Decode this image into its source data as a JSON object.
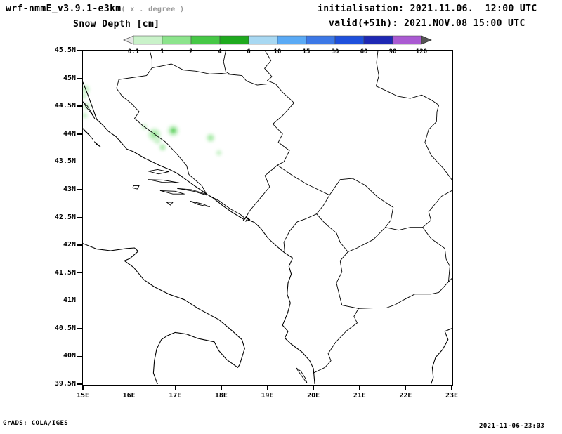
{
  "header": {
    "model_title": "wrf-nmmE_v3.9.1-e3km",
    "model_note": "( x . degree )",
    "product_title": "Snow Depth [cm]",
    "init_line": "initialisation: 2021.11.06.  12:00 UTC",
    "valid_line": "valid(+51h): 2021.NOV.08 15:00 UTC"
  },
  "footer": {
    "credit": "GrADS: COLA/IGES",
    "timestamp": "2021-11-06-23:03"
  },
  "chart_data": {
    "type": "map",
    "title": "Snow Depth [cm]",
    "variable": "snow depth",
    "units": "cm",
    "projection": "lat-lon",
    "region": "Adriatic / Balkans",
    "lon_range": [
      15,
      23
    ],
    "lat_range": [
      39.5,
      45.5
    ],
    "lon_ticks": [
      "15E",
      "16E",
      "17E",
      "18E",
      "19E",
      "20E",
      "21E",
      "22E",
      "23E"
    ],
    "lat_ticks": [
      "45.5N",
      "45N",
      "44.5N",
      "44N",
      "43.5N",
      "43N",
      "42.5N",
      "42N",
      "41.5N",
      "41N",
      "40.5N",
      "40N",
      "39.5N"
    ],
    "colorbar": {
      "levels": [
        0.1,
        1,
        2,
        4,
        6,
        10,
        15,
        30,
        60,
        90,
        120
      ],
      "labels": [
        "0.1",
        "1",
        "2",
        "4",
        "6",
        "10",
        "15",
        "30",
        "60",
        "90",
        "120"
      ],
      "segment_colors": [
        "#c9f2c9",
        "#8ce48c",
        "#46c846",
        "#1eaa1e",
        "#a8d8f2",
        "#5aaaf5",
        "#3c78e6",
        "#1e50dc",
        "#1e28b4",
        "#aa5ad2"
      ],
      "under_arrow_color": "#e6e6e6",
      "over_arrow_color": "#555555"
    },
    "snow_spots": [
      {
        "lon": 15.05,
        "lat": 44.8,
        "r": 6,
        "cm": 0.5
      },
      {
        "lon": 15.02,
        "lat": 44.68,
        "r": 4,
        "cm": 0.5
      },
      {
        "lon": 15.08,
        "lat": 44.5,
        "r": 5,
        "cm": 0.5
      },
      {
        "lon": 15.04,
        "lat": 44.33,
        "r": 4,
        "cm": 0.5
      },
      {
        "lon": 16.33,
        "lat": 44.13,
        "r": 4,
        "cm": 0.5
      },
      {
        "lon": 16.55,
        "lat": 43.99,
        "r": 9,
        "cm": 0.5
      },
      {
        "lon": 16.55,
        "lat": 43.99,
        "r": 4,
        "cm": 1.5
      },
      {
        "lon": 16.62,
        "lat": 43.88,
        "r": 5,
        "cm": 0.5
      },
      {
        "lon": 16.96,
        "lat": 44.06,
        "r": 8,
        "cm": 0.5
      },
      {
        "lon": 16.96,
        "lat": 44.06,
        "r": 3.5,
        "cm": 3
      },
      {
        "lon": 16.73,
        "lat": 43.76,
        "r": 5,
        "cm": 0.5
      },
      {
        "lon": 16.73,
        "lat": 43.76,
        "r": 2,
        "cm": 1.5
      },
      {
        "lon": 17.77,
        "lat": 43.93,
        "r": 6,
        "cm": 0.5
      },
      {
        "lon": 17.77,
        "lat": 43.93,
        "r": 2.5,
        "cm": 1.5
      },
      {
        "lon": 17.95,
        "lat": 43.66,
        "r": 4,
        "cm": 0.5
      }
    ]
  }
}
